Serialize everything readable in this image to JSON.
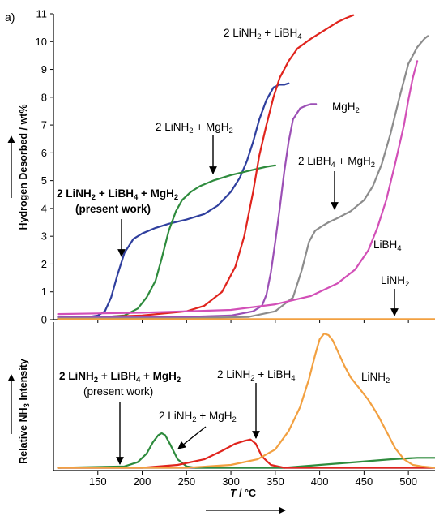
{
  "panel_label": "a)",
  "colors": {
    "LiNH2_LiBH4_MgH2": "#2f3f9e",
    "LiNH2_MgH2": "#2e8b3d",
    "LiNH2_LiBH4": "#e0241d",
    "MgH2": "#9b4fb5",
    "LiBH4_MgH2": "#8c8c8c",
    "LiBH4": "#d24fb7",
    "LiNH2": "#f2a040"
  },
  "chart_data": [
    {
      "type": "line",
      "xlabel": "T / °C",
      "ylabel": "Hydrogen Desorbed / wt%",
      "xlim": [
        100,
        530
      ],
      "ylim": [
        0,
        11
      ],
      "xticks": [
        150,
        200,
        250,
        300,
        350,
        400,
        450,
        500
      ],
      "yticks": [
        0,
        1,
        2,
        3,
        4,
        5,
        6,
        7,
        8,
        9,
        10,
        11
      ],
      "series": [
        {
          "name": "2 LiNH2 + LiBH4 + MgH2 (present work)",
          "color_key": "LiNH2_LiBH4_MgH2",
          "x": [
            105,
            140,
            150,
            158,
            165,
            172,
            180,
            190,
            200,
            215,
            230,
            250,
            270,
            285,
            300,
            310,
            318,
            325,
            332,
            340,
            348,
            355,
            360,
            365
          ],
          "y": [
            0.1,
            0.1,
            0.15,
            0.3,
            0.8,
            1.6,
            2.4,
            2.9,
            3.1,
            3.3,
            3.45,
            3.6,
            3.8,
            4.1,
            4.6,
            5.1,
            5.7,
            6.4,
            7.2,
            7.9,
            8.35,
            8.45,
            8.45,
            8.5
          ]
        },
        {
          "name": "2 LiNH2 + MgH2",
          "color_key": "LiNH2_MgH2",
          "x": [
            105,
            160,
            180,
            195,
            205,
            215,
            222,
            230,
            238,
            245,
            255,
            265,
            280,
            300,
            320,
            340,
            350
          ],
          "y": [
            0.1,
            0.1,
            0.15,
            0.4,
            0.8,
            1.4,
            2.2,
            3.2,
            3.9,
            4.3,
            4.6,
            4.8,
            5.0,
            5.2,
            5.35,
            5.5,
            5.55
          ]
        },
        {
          "name": "2 LiNH2 + LiBH4",
          "color_key": "LiNH2_LiBH4",
          "x": [
            105,
            200,
            250,
            270,
            290,
            305,
            315,
            325,
            332,
            340,
            348,
            355,
            365,
            375,
            390,
            405,
            420,
            430,
            438
          ],
          "y": [
            0.05,
            0.15,
            0.3,
            0.5,
            1.0,
            1.9,
            3.0,
            4.6,
            5.9,
            7.0,
            8.0,
            8.7,
            9.3,
            9.75,
            10.1,
            10.4,
            10.7,
            10.85,
            10.95
          ]
        },
        {
          "name": "MgH2",
          "color_key": "MgH2",
          "x": [
            105,
            250,
            300,
            325,
            335,
            340,
            345,
            350,
            355,
            360,
            365,
            370,
            378,
            385,
            390,
            396
          ],
          "y": [
            0.1,
            0.1,
            0.15,
            0.3,
            0.5,
            0.9,
            1.7,
            2.8,
            4.0,
            5.3,
            6.4,
            7.2,
            7.6,
            7.7,
            7.75,
            7.75
          ]
        },
        {
          "name": "2 LiBH4 + MgH2",
          "color_key": "LiBH4_MgH2",
          "x": [
            105,
            250,
            320,
            350,
            370,
            380,
            388,
            395,
            402,
            410,
            420,
            435,
            450,
            460,
            470,
            480,
            490,
            500,
            510,
            518,
            522
          ],
          "y": [
            0.05,
            0.05,
            0.1,
            0.3,
            0.8,
            1.8,
            2.8,
            3.2,
            3.35,
            3.5,
            3.65,
            3.9,
            4.3,
            4.8,
            5.6,
            6.7,
            8.0,
            9.2,
            9.8,
            10.1,
            10.2
          ]
        },
        {
          "name": "LiBH4",
          "color_key": "LiBH4",
          "x": [
            105,
            200,
            300,
            350,
            390,
            420,
            440,
            455,
            465,
            475,
            485,
            495,
            500,
            505,
            510
          ],
          "y": [
            0.2,
            0.25,
            0.35,
            0.55,
            0.85,
            1.3,
            1.8,
            2.5,
            3.3,
            4.3,
            5.6,
            7.0,
            7.9,
            8.7,
            9.3
          ]
        },
        {
          "name": "LiNH2",
          "color_key": "LiNH2",
          "x": [
            105,
            530
          ],
          "y": [
            0.02,
            0.02
          ]
        }
      ],
      "annotations": [
        {
          "text": "2 LiNH",
          "sub": "2",
          "rest": " + LiBH",
          "sub2": "4"
        },
        {
          "text": "2 LiNH",
          "sub": "2",
          "rest": " + MgH",
          "sub2": "2"
        },
        {
          "text": "MgH",
          "sub": "2"
        },
        {
          "text": "2 LiBH",
          "sub": "4",
          "rest": " + MgH",
          "sub2": "2"
        },
        {
          "text": "2 LiNH",
          "sub": "2",
          "rest": " + LiBH",
          "sub2": "4",
          "rest2": " + MgH",
          "sub3": "2",
          "note": "(present work)"
        },
        {
          "text": "LiBH",
          "sub": "4"
        },
        {
          "text": "LiNH",
          "sub": "2"
        }
      ]
    },
    {
      "type": "line",
      "xlabel": "T / °C",
      "ylabel": "Relative NH3 Intensity",
      "xlim": [
        100,
        530
      ],
      "xticks": [
        150,
        200,
        250,
        300,
        350,
        400,
        450,
        500
      ],
      "series": [
        {
          "name": "2 LiNH2 + LiBH4 + MgH2 (present work)",
          "color_key": "LiNH2_LiBH4_MgH2",
          "x": [
            105,
            530
          ],
          "y": [
            0.02,
            0.02
          ]
        },
        {
          "name": "2 LiNH2 + MgH2",
          "color_key": "LiNH2_MgH2",
          "x": [
            105,
            180,
            195,
            205,
            212,
            218,
            222,
            226,
            232,
            240,
            250,
            260,
            280,
            320,
            360,
            400,
            440,
            480,
            510,
            530
          ],
          "y": [
            0.02,
            0.03,
            0.06,
            0.12,
            0.2,
            0.25,
            0.265,
            0.25,
            0.18,
            0.08,
            0.03,
            0.02,
            0.02,
            0.02,
            0.02,
            0.04,
            0.06,
            0.08,
            0.09,
            0.09
          ]
        },
        {
          "name": "2 LiNH2 + LiBH4",
          "color_key": "LiNH2_LiBH4",
          "x": [
            105,
            200,
            240,
            270,
            290,
            305,
            315,
            322,
            328,
            335,
            345,
            360,
            380,
            530
          ],
          "y": [
            0.02,
            0.02,
            0.04,
            0.08,
            0.14,
            0.19,
            0.21,
            0.22,
            0.19,
            0.1,
            0.04,
            0.02,
            0.02,
            0.02
          ]
        },
        {
          "name": "LiNH2",
          "color_key": "LiNH2",
          "x": [
            105,
            250,
            300,
            330,
            350,
            365,
            378,
            388,
            395,
            400,
            405,
            410,
            415,
            420,
            428,
            435,
            445,
            455,
            465,
            475,
            485,
            495,
            505,
            515,
            530
          ],
          "y": [
            0.02,
            0.02,
            0.04,
            0.08,
            0.15,
            0.28,
            0.45,
            0.65,
            0.82,
            0.93,
            0.97,
            0.96,
            0.92,
            0.85,
            0.74,
            0.66,
            0.58,
            0.5,
            0.4,
            0.28,
            0.16,
            0.08,
            0.04,
            0.03,
            0.02
          ]
        }
      ],
      "annotations": [
        {
          "text": "2 LiNH",
          "sub": "2",
          "rest": " + LiBH",
          "sub2": "4",
          "rest2": " + MgH",
          "sub3": "2",
          "note": "(present work)"
        },
        {
          "text": "2 LiNH",
          "sub": "2",
          "rest": " + MgH",
          "sub2": "2"
        },
        {
          "text": "2 LiNH",
          "sub": "2",
          "rest": " + LiBH",
          "sub2": "4"
        },
        {
          "text": "LiNH",
          "sub": "2"
        }
      ]
    }
  ]
}
